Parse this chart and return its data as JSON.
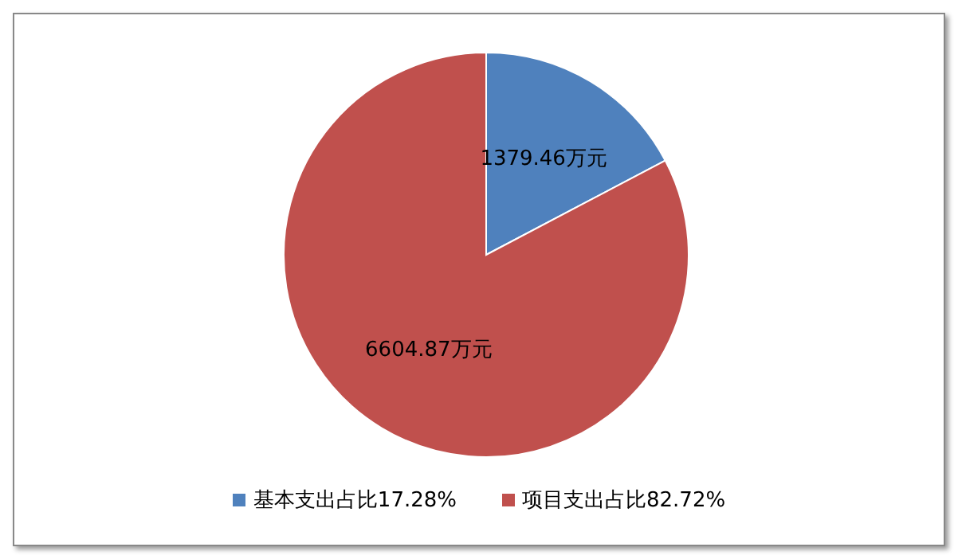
{
  "chart_data": {
    "type": "pie",
    "categories": [
      "基本支出占比17.28%",
      "项目支出占比82.72%"
    ],
    "values": [
      1379.46,
      6604.87
    ],
    "value_labels": [
      "1379.46万元",
      "6604.87万元"
    ],
    "colors": [
      "#4f81bd",
      "#c0504d"
    ],
    "legend": "bottom"
  }
}
